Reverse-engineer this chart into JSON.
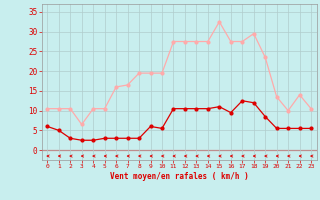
{
  "x": [
    0,
    1,
    2,
    3,
    4,
    5,
    6,
    7,
    8,
    9,
    10,
    11,
    12,
    13,
    14,
    15,
    16,
    17,
    18,
    19,
    20,
    21,
    22,
    23
  ],
  "wind_avg": [
    6,
    5,
    3,
    2.5,
    2.5,
    3,
    3,
    3,
    3,
    6,
    5.5,
    10.5,
    10.5,
    10.5,
    10.5,
    11,
    9.5,
    12.5,
    12,
    8.5,
    5.5,
    5.5,
    5.5,
    5.5
  ],
  "wind_gust": [
    10.5,
    10.5,
    10.5,
    6.5,
    10.5,
    10.5,
    16,
    16.5,
    19.5,
    19.5,
    19.5,
    27.5,
    27.5,
    27.5,
    27.5,
    32.5,
    27.5,
    27.5,
    29.5,
    23.5,
    13.5,
    10,
    14,
    10.5
  ],
  "color_avg": "#dd0000",
  "color_gust": "#ffaaaa",
  "color_dir": "#dd0000",
  "bg_color": "#c8eeee",
  "grid_color": "#b0cccc",
  "xlabel": "Vent moyen/en rafales ( km/h )",
  "xlabel_color": "#dd0000",
  "tick_color": "#dd0000",
  "ylim": [
    -2.5,
    37
  ],
  "xlim": [
    -0.5,
    23.5
  ],
  "yticks": [
    0,
    5,
    10,
    15,
    20,
    25,
    30,
    35
  ]
}
